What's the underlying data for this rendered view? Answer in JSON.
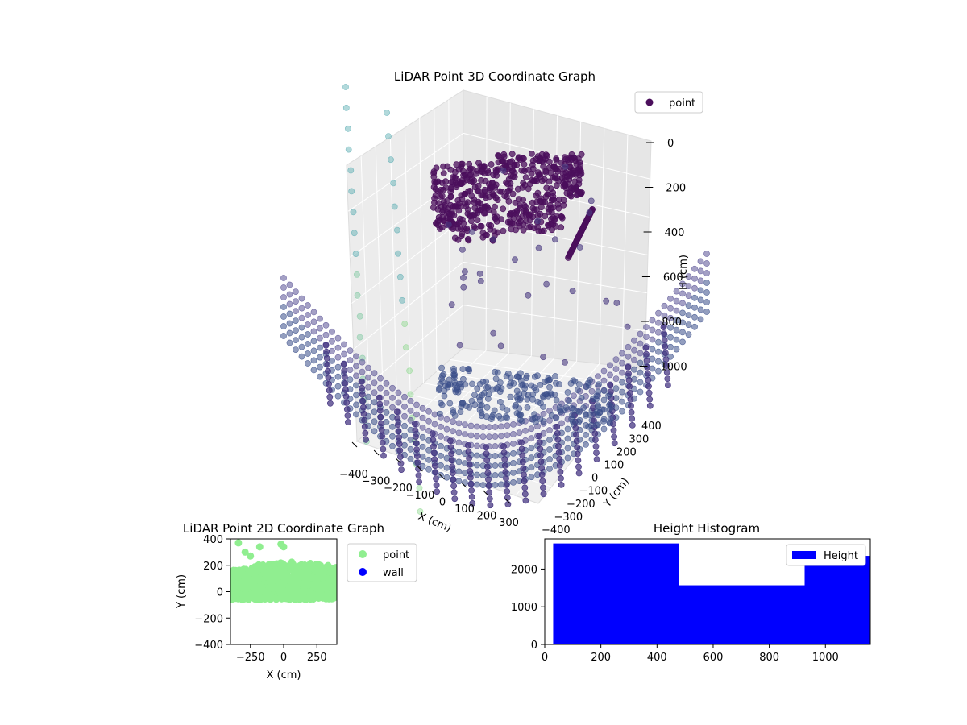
{
  "chart_data": [
    {
      "type": "scatter",
      "title": "LiDAR Point 3D Coordinate Graph",
      "xlabel": "X (cm)",
      "ylabel": "Y (cm)",
      "zlabel": "H (cm)",
      "xlim": [
        -400,
        400
      ],
      "ylim": [
        -400,
        400
      ],
      "zlim": [
        0,
        1000
      ],
      "z_axis_inverted": true,
      "x_ticks": [
        "−400",
        "−300",
        "−200",
        "−100",
        "0",
        "100",
        "200",
        "300"
      ],
      "y_ticks": [
        "−400",
        "−300",
        "−200",
        "−100",
        "0",
        "100",
        "200",
        "300",
        "400"
      ],
      "z_ticks": [
        "0",
        "200",
        "400",
        "600",
        "800",
        "1000"
      ],
      "grid": true,
      "legend": {
        "placement": "top-right",
        "entries": [
          "point"
        ]
      },
      "colormap": "viridis",
      "colors": {
        "dark": "#4b0f5c",
        "mid": "#3b4f8a",
        "teal": "#55aab0",
        "green": "#8fd98f"
      }
    },
    {
      "type": "scatter",
      "title": "LiDAR Point 2D Coordinate Graph",
      "xlabel": "X (cm)",
      "ylabel": "Y (cm)",
      "xlim": [
        -400,
        400
      ],
      "ylim": [
        -400,
        400
      ],
      "x_ticks": [
        "−250",
        "0",
        "250"
      ],
      "y_ticks": [
        "−400",
        "−200",
        "0",
        "200",
        "400"
      ],
      "legend": {
        "placement": "outside-right",
        "entries": [
          "point",
          "wall"
        ]
      },
      "series": [
        {
          "name": "point",
          "color": "#90ee90"
        },
        {
          "name": "wall",
          "color": "#0000ff"
        }
      ]
    },
    {
      "type": "bar",
      "title": "Height Histogram",
      "xlim": [
        0,
        1160
      ],
      "ylim": [
        0,
        2800
      ],
      "x_ticks": [
        "0",
        "200",
        "400",
        "600",
        "800",
        "1000"
      ],
      "y_ticks": [
        "0",
        "1000",
        "2000"
      ],
      "legend": {
        "placement": "top-right",
        "entries": [
          "Height"
        ]
      },
      "series": [
        {
          "name": "Height",
          "color": "#0000ff"
        }
      ],
      "bins": [
        {
          "x0": 30,
          "x1": 478,
          "count": 2680
        },
        {
          "x0": 478,
          "x1": 926,
          "count": 1570
        },
        {
          "x0": 926,
          "x1": 1160,
          "count": 2350
        }
      ]
    }
  ]
}
